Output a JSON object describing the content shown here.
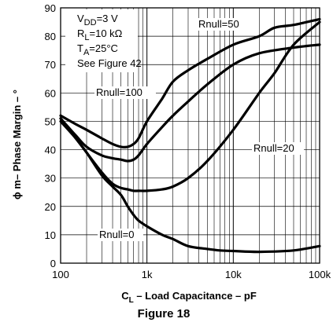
{
  "chart_data": {
    "type": "line",
    "x_scale": "log",
    "xlim": [
      100,
      100000
    ],
    "ylim": [
      0,
      90
    ],
    "grid": true,
    "xticks": [
      100,
      1000,
      10000,
      100000
    ],
    "xtick_labels": [
      "100",
      "1k",
      "10k",
      "100k"
    ],
    "yticks": [
      0,
      10,
      20,
      30,
      40,
      50,
      60,
      70,
      80,
      90
    ],
    "ytick_labels": [
      "0",
      "10",
      "20",
      "30",
      "40",
      "50",
      "60",
      "70",
      "80",
      "90"
    ],
    "ylabel": "ϕ m– Phase Margin – °",
    "xlabel_main": "C",
    "xlabel_sub": "L",
    "xlabel_rest": " – Load Capacitance – pF",
    "caption": "Figure 18",
    "conditions": [
      {
        "main": "V",
        "sub": "DD",
        "rest": "=3 V"
      },
      {
        "main": "R",
        "sub": "L",
        "rest": "=10 kΩ"
      },
      {
        "main": "T",
        "sub": "A",
        "rest": "=25°C"
      },
      {
        "main": "See Figure 42",
        "sub": "",
        "rest": ""
      }
    ],
    "series": [
      {
        "name": "Rnull=0",
        "x": [
          100,
          150,
          200,
          300,
          400,
          500,
          600,
          700,
          800,
          1000,
          1500,
          2000,
          3000,
          5000,
          7000,
          10000,
          20000,
          50000,
          100000
        ],
        "y": [
          50,
          44,
          39,
          31,
          27,
          24,
          20,
          17,
          15,
          13,
          10,
          8.5,
          6,
          5,
          4.5,
          4.3,
          4,
          4.5,
          6
        ]
      },
      {
        "name": "Rnull=20",
        "x": [
          100,
          150,
          200,
          300,
          400,
          500,
          600,
          700,
          800,
          1000,
          1500,
          2000,
          3000,
          5000,
          10000,
          20000,
          30000,
          50000,
          100000
        ],
        "y": [
          51,
          44,
          39,
          32,
          28,
          26.5,
          26,
          25.5,
          25.5,
          25.5,
          26,
          27,
          30,
          36,
          47,
          60,
          67,
          77,
          85
        ]
      },
      {
        "name": "Rnull=50",
        "x": [
          100,
          150,
          200,
          300,
          400,
          500,
          600,
          700,
          800,
          1000,
          1500,
          2000,
          3000,
          5000,
          10000,
          20000,
          30000,
          50000,
          100000
        ],
        "y": [
          52,
          49,
          47,
          44,
          42,
          41,
          41,
          42,
          44,
          50,
          58,
          64,
          68,
          72,
          77,
          80,
          83,
          84,
          86
        ]
      },
      {
        "name": "Rnull=100",
        "x": [
          100,
          150,
          200,
          300,
          400,
          500,
          600,
          700,
          800,
          1000,
          1500,
          2000,
          3000,
          5000,
          10000,
          20000,
          50000,
          100000
        ],
        "y": [
          51,
          45,
          41,
          38,
          37,
          36.5,
          36,
          36.5,
          38,
          42,
          48,
          52,
          57,
          63,
          70,
          74,
          76,
          77
        ]
      }
    ],
    "labels": [
      {
        "text": "Rnull=50"
      },
      {
        "text": "Rnull=100"
      },
      {
        "text": "Rnull=20"
      },
      {
        "text": "Rnull=0"
      }
    ]
  }
}
